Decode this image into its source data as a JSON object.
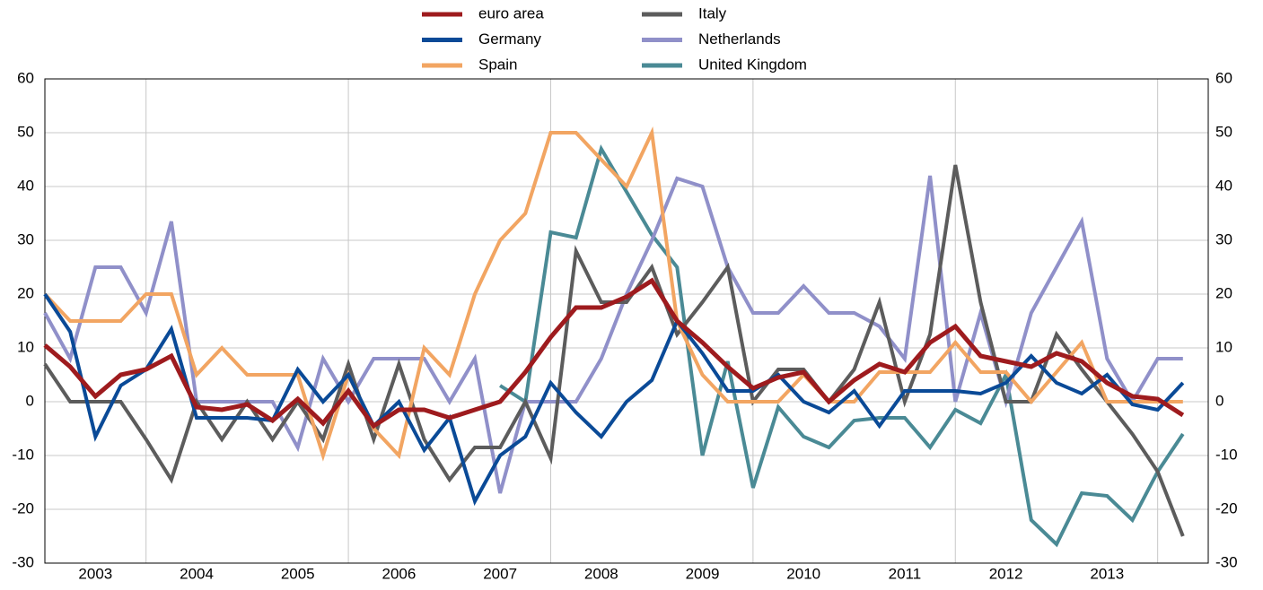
{
  "chart_data": {
    "type": "line",
    "x": [
      2003,
      2003.25,
      2003.5,
      2003.75,
      2004,
      2004.25,
      2004.5,
      2004.75,
      2005,
      2005.25,
      2005.5,
      2005.75,
      2006,
      2006.25,
      2006.5,
      2006.75,
      2007,
      2007.25,
      2007.5,
      2007.75,
      2008,
      2008.25,
      2008.5,
      2008.75,
      2009,
      2009.25,
      2009.5,
      2009.75,
      2010,
      2010.25,
      2010.5,
      2010.75,
      2011,
      2011.25,
      2011.5,
      2011.75,
      2012,
      2012.25,
      2012.5,
      2012.75,
      2013,
      2013.25,
      2013.5,
      2013.75,
      2014,
      2014.25
    ],
    "xlim": [
      2003,
      2014.5
    ],
    "xticks": [
      {
        "value": 2003.5,
        "label": "2003"
      },
      {
        "value": 2004.5,
        "label": "2004"
      },
      {
        "value": 2005.5,
        "label": "2005"
      },
      {
        "value": 2006.5,
        "label": "2006"
      },
      {
        "value": 2007.5,
        "label": "2007"
      },
      {
        "value": 2008.5,
        "label": "2008"
      },
      {
        "value": 2009.5,
        "label": "2009"
      },
      {
        "value": 2010.5,
        "label": "2010"
      },
      {
        "value": 2011.5,
        "label": "2011"
      },
      {
        "value": 2012.5,
        "label": "2012"
      },
      {
        "value": 2013.5,
        "label": "2013"
      }
    ],
    "ylim": [
      -30,
      60
    ],
    "yticks": [
      -30,
      -20,
      -10,
      0,
      10,
      20,
      30,
      40,
      50,
      60
    ],
    "grid": true,
    "series": [
      {
        "name": "euro area",
        "color": "#9e1b1e",
        "values": [
          10.5,
          6.5,
          1,
          5,
          6,
          8.5,
          -1,
          -1.5,
          -0.5,
          -3.5,
          0.5,
          -4,
          2,
          -4.5,
          -1.5,
          -1.5,
          -3,
          -1.5,
          0,
          5.5,
          12,
          17.5,
          17.5,
          19.5,
          22.5,
          15,
          11,
          6.5,
          2.5,
          4.5,
          5.5,
          0,
          4,
          7,
          5.5,
          11,
          14,
          8.5,
          7.5,
          6.5,
          9,
          7.5,
          3.5,
          1,
          0.5,
          -2.5
        ]
      },
      {
        "name": "Germany",
        "color": "#0a4a97",
        "values": [
          20,
          13,
          -6.5,
          3,
          6,
          13.5,
          -3,
          -3,
          -3,
          -3.5,
          6,
          0,
          5,
          -4.5,
          0,
          -9,
          -3,
          -18.5,
          -10,
          -6.5,
          3.5,
          -2,
          -6.5,
          0,
          4,
          15,
          9,
          2,
          2,
          5,
          0,
          -2,
          2,
          -4.5,
          2,
          2,
          2,
          1.5,
          3.5,
          8.5,
          3.5,
          1.5,
          5,
          -0.5,
          -1.5,
          3.5
        ]
      },
      {
        "name": "Spain",
        "color": "#f2a562",
        "values": [
          20,
          15,
          15,
          15,
          20,
          20,
          5,
          10,
          5,
          5,
          5,
          -10,
          5,
          -5,
          -10,
          10,
          5,
          20,
          30,
          35,
          50,
          50,
          45,
          40,
          50,
          15,
          5,
          0,
          0,
          0,
          5,
          0,
          0,
          5.5,
          5.5,
          5.5,
          11,
          5.5,
          5.5,
          0,
          5.5,
          11,
          0,
          0,
          0,
          0
        ]
      },
      {
        "name": "Italy",
        "color": "#5c5c5c",
        "values": [
          7,
          0,
          0,
          0,
          -7,
          -14.5,
          0,
          -7,
          0,
          -7,
          0,
          -7,
          7,
          -7,
          7,
          -7,
          -14.5,
          -8.5,
          -8.5,
          0,
          -10.5,
          28,
          18.5,
          18.5,
          25,
          12.5,
          18.5,
          25,
          0,
          6,
          6,
          0,
          6,
          18.5,
          0,
          12.5,
          44,
          18.5,
          0,
          0,
          12.5,
          6,
          0,
          -6,
          -13,
          -25
        ]
      },
      {
        "name": "Netherlands",
        "color": "#9090c9",
        "values": [
          16.5,
          8,
          25,
          25,
          16.5,
          33.5,
          0,
          0,
          0,
          0,
          -8.5,
          8,
          0,
          8,
          8,
          8,
          0,
          8,
          -17,
          0,
          0,
          0,
          8,
          20,
          30,
          41.5,
          40,
          25,
          16.5,
          16.5,
          21.5,
          16.5,
          16.5,
          14,
          8,
          42,
          0,
          16.5,
          0,
          16.5,
          25,
          33.5,
          8,
          0,
          8,
          8
        ]
      },
      {
        "name": "United Kingdom",
        "color": "#4a8a95",
        "values": [
          null,
          null,
          null,
          null,
          null,
          null,
          null,
          null,
          null,
          null,
          null,
          null,
          null,
          null,
          null,
          null,
          null,
          null,
          3,
          0,
          31.5,
          30.5,
          47,
          39,
          31,
          25,
          -10,
          7.5,
          -16,
          -1,
          -6.5,
          -8.5,
          -3.5,
          -3,
          -3,
          -8.5,
          -1.5,
          -4,
          5,
          -22,
          -26.5,
          -17,
          -17.5,
          -22,
          -13,
          -6
        ]
      }
    ]
  }
}
